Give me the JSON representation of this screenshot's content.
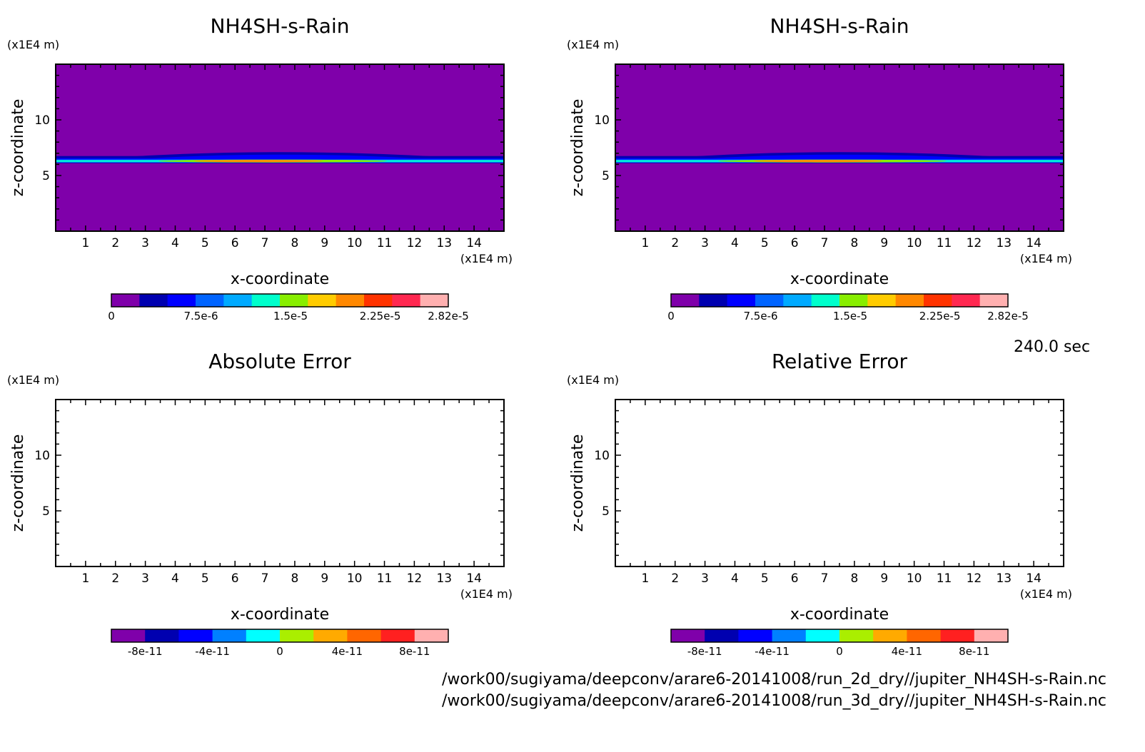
{
  "time_label": "240.0 sec",
  "file_paths": [
    "/work00/sugiyama/deepconv/arare6-20141008/run_2d_dry//jupiter_NH4SH-s-Rain.nc",
    "/work00/sugiyama/deepconv/arare6-20141008/run_3d_dry//jupiter_NH4SH-s-Rain.nc"
  ],
  "chart_data": [
    {
      "type": "heatmap",
      "title": "NH4SH-s-Rain",
      "xlabel": "x-coordinate",
      "ylabel": "z-coordinate",
      "x_unit": "(x1E4 m)",
      "y_unit": "(x1E4 m)",
      "xlim": [
        0,
        15
      ],
      "ylim": [
        0,
        15
      ],
      "x_ticks": [
        "1",
        "2",
        "3",
        "4",
        "5",
        "6",
        "7",
        "8",
        "9",
        "10",
        "11",
        "12",
        "13",
        "14"
      ],
      "y_ticks": [
        "5",
        "10"
      ],
      "field": {
        "background": 0,
        "layer_z": 6.3,
        "peak_x": 7.5,
        "peak_value": 2.82e-05
      },
      "colorbar": {
        "labels": [
          "0",
          "7.5e-6",
          "1.5e-5",
          "2.25e-5",
          "2.82e-5"
        ],
        "colors": [
          "#7f00aa",
          "#0000b0",
          "#0000ff",
          "#0064ff",
          "#00aaff",
          "#00ffcc",
          "#88ee00",
          "#ffcc00",
          "#ff8800",
          "#ff3300",
          "#ff2850",
          "#ffb0b0"
        ]
      }
    },
    {
      "type": "heatmap",
      "title": "NH4SH-s-Rain",
      "xlabel": "x-coordinate",
      "ylabel": "z-coordinate",
      "x_unit": "(x1E4 m)",
      "y_unit": "(x1E4 m)",
      "xlim": [
        0,
        15
      ],
      "ylim": [
        0,
        15
      ],
      "x_ticks": [
        "1",
        "2",
        "3",
        "4",
        "5",
        "6",
        "7",
        "8",
        "9",
        "10",
        "11",
        "12",
        "13",
        "14"
      ],
      "y_ticks": [
        "5",
        "10"
      ],
      "field": {
        "background": 0,
        "layer_z": 6.3,
        "peak_x": 7.5,
        "peak_value": 2.82e-05
      },
      "colorbar": {
        "labels": [
          "0",
          "7.5e-6",
          "1.5e-5",
          "2.25e-5",
          "2.82e-5"
        ],
        "colors": [
          "#7f00aa",
          "#0000b0",
          "#0000ff",
          "#0064ff",
          "#00aaff",
          "#00ffcc",
          "#88ee00",
          "#ffcc00",
          "#ff8800",
          "#ff3300",
          "#ff2850",
          "#ffb0b0"
        ]
      }
    },
    {
      "type": "heatmap",
      "title": "Absolute Error",
      "xlabel": "x-coordinate",
      "ylabel": "z-coordinate",
      "x_unit": "(x1E4 m)",
      "y_unit": "(x1E4 m)",
      "xlim": [
        0,
        15
      ],
      "ylim": [
        0,
        15
      ],
      "x_ticks": [
        "1",
        "2",
        "3",
        "4",
        "5",
        "6",
        "7",
        "8",
        "9",
        "10",
        "11",
        "12",
        "13",
        "14"
      ],
      "y_ticks": [
        "5",
        "10"
      ],
      "field": null,
      "colorbar": {
        "labels": [
          "-8e-11",
          "-4e-11",
          "0",
          "4e-11",
          "8e-11"
        ],
        "colors": [
          "#7f00aa",
          "#0000b0",
          "#0000ff",
          "#0080ff",
          "#00ffff",
          "#aaee00",
          "#ffaa00",
          "#ff6600",
          "#ff2020",
          "#ffb0b0"
        ]
      }
    },
    {
      "type": "heatmap",
      "title": "Relative Error",
      "xlabel": "x-coordinate",
      "ylabel": "z-coordinate",
      "x_unit": "(x1E4 m)",
      "y_unit": "(x1E4 m)",
      "xlim": [
        0,
        15
      ],
      "ylim": [
        0,
        15
      ],
      "x_ticks": [
        "1",
        "2",
        "3",
        "4",
        "5",
        "6",
        "7",
        "8",
        "9",
        "10",
        "11",
        "12",
        "13",
        "14"
      ],
      "y_ticks": [
        "5",
        "10"
      ],
      "field": null,
      "colorbar": {
        "labels": [
          "-8e-11",
          "-4e-11",
          "0",
          "4e-11",
          "8e-11"
        ],
        "colors": [
          "#7f00aa",
          "#0000b0",
          "#0000ff",
          "#0080ff",
          "#00ffff",
          "#aaee00",
          "#ffaa00",
          "#ff6600",
          "#ff2020",
          "#ffb0b0"
        ]
      }
    }
  ]
}
